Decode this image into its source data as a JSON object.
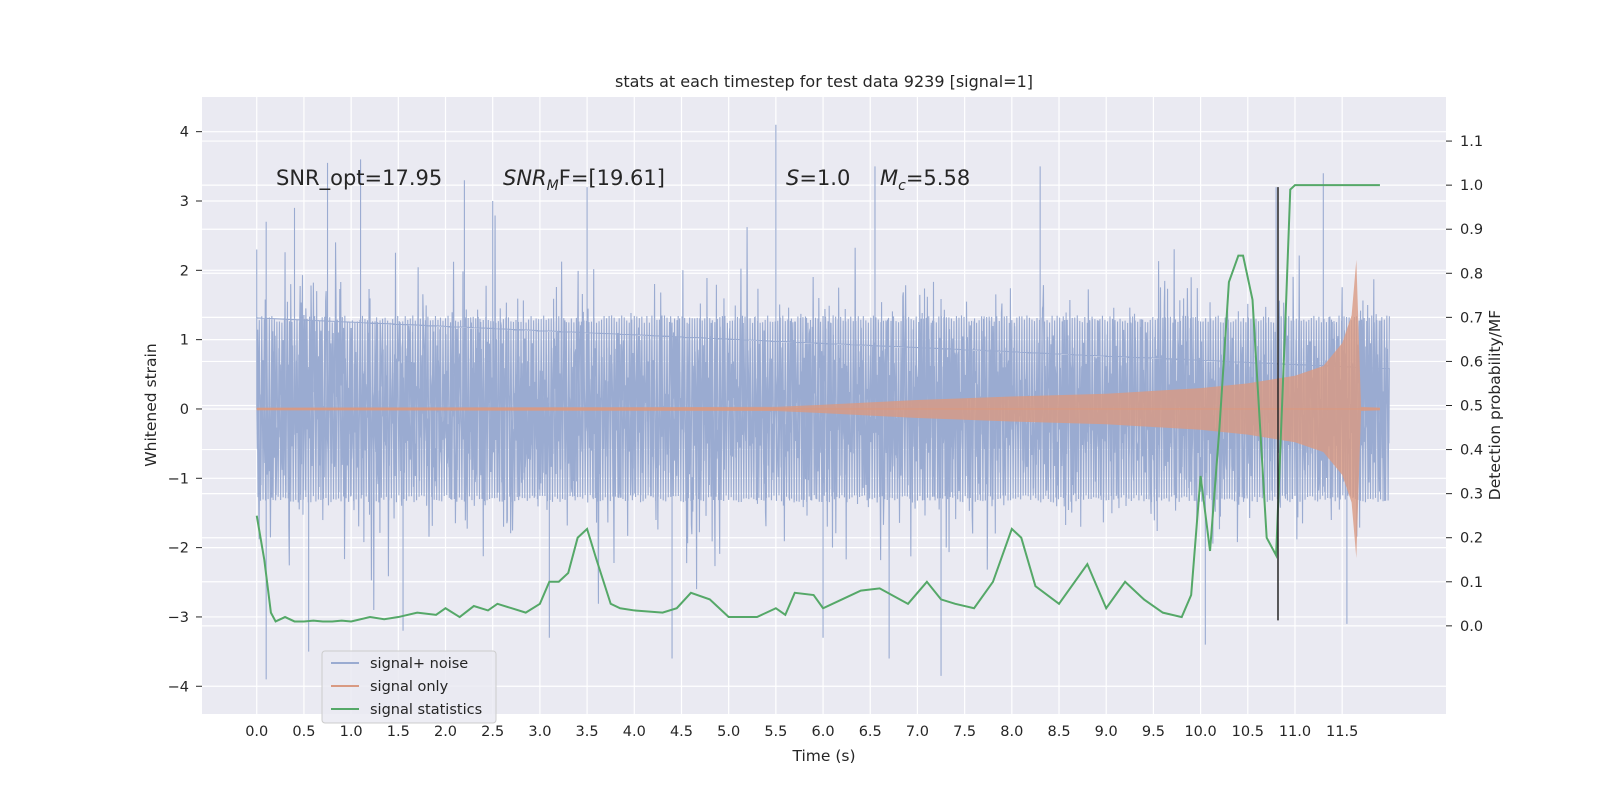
{
  "chart_data": {
    "type": "line",
    "title": "stats at each timestep for test data 9239 [signal=1]",
    "xlabel": "Time (s)",
    "ylabel_left": "Whitened strain",
    "ylabel_right": "Detection probability/MF",
    "xlim": [
      -0.58,
      12.6
    ],
    "ylim_left": [
      -4.4,
      4.5
    ],
    "ylim_right": [
      -0.2,
      1.2
    ],
    "x_ticks": [
      0.0,
      0.5,
      1.0,
      1.5,
      2.0,
      2.5,
      3.0,
      3.5,
      4.0,
      4.5,
      5.0,
      5.5,
      6.0,
      6.5,
      7.0,
      7.5,
      8.0,
      8.5,
      9.0,
      9.5,
      10.0,
      10.5,
      11.0,
      11.5
    ],
    "x_tick_labels": [
      "0.0",
      "0.5",
      "1.0",
      "1.5",
      "2.0",
      "2.5",
      "3.0",
      "3.5",
      "4.0",
      "4.5",
      "5.0",
      "5.5",
      "6.0",
      "6.5",
      "7.0",
      "7.5",
      "8.0",
      "8.5",
      "9.0",
      "9.5",
      "10.0",
      "10.5",
      "11.0",
      "11.5"
    ],
    "y_left_ticks": [
      -4,
      -3,
      -2,
      -1,
      0,
      1,
      2,
      3,
      4
    ],
    "y_left_tick_labels": [
      "−4",
      "−3",
      "−2",
      "−1",
      "0",
      "1",
      "2",
      "3",
      "4"
    ],
    "y_right_ticks": [
      0.0,
      0.1,
      0.2,
      0.3,
      0.4,
      0.5,
      0.6,
      0.7,
      0.8,
      0.9,
      1.0,
      1.1
    ],
    "y_right_tick_labels": [
      "0.0",
      "0.1",
      "0.2",
      "0.3",
      "0.4",
      "0.5",
      "0.6",
      "0.7",
      "0.8",
      "0.9",
      "1.0",
      "1.1"
    ],
    "grid": true,
    "background": "#eaeaf2",
    "annotations": {
      "snr_opt": "SNR_opt=17.95",
      "snr_mf_main": "SNR",
      "snr_mf_sub": "M",
      "snr_mf_rest": "F=[19.61]",
      "s_main": "S",
      "s_rest": "=1.0",
      "mc_main": "M",
      "mc_sub": "c",
      "mc_rest": "=5.58"
    },
    "vertical_marker_x": 10.82,
    "series": [
      {
        "name": "signal+ noise",
        "color": "#9aabd1",
        "axis": "left",
        "kind": "noise",
        "x_range": [
          0.0,
          12.0
        ],
        "core_amplitude": 1.35,
        "peak_values": [
          {
            "x": 0.0,
            "y": 2.3
          },
          {
            "x": 0.1,
            "y": 2.7
          },
          {
            "x": 0.4,
            "y": 2.9
          },
          {
            "x": 0.75,
            "y": 3.55
          },
          {
            "x": 1.1,
            "y": 3.6
          },
          {
            "x": 2.2,
            "y": 3.3
          },
          {
            "x": 2.5,
            "y": 3.0
          },
          {
            "x": 3.5,
            "y": 3.2
          },
          {
            "x": 5.5,
            "y": 4.1
          },
          {
            "x": 6.55,
            "y": 3.5
          },
          {
            "x": 8.3,
            "y": 3.5
          },
          {
            "x": 10.8,
            "y": 3.2
          },
          {
            "x": 11.3,
            "y": 3.4
          }
        ],
        "trough_values": [
          {
            "x": 0.1,
            "y": -3.9
          },
          {
            "x": 0.55,
            "y": -3.5
          },
          {
            "x": 1.55,
            "y": -3.2
          },
          {
            "x": 3.1,
            "y": -3.3
          },
          {
            "x": 4.4,
            "y": -3.6
          },
          {
            "x": 6.0,
            "y": -3.3
          },
          {
            "x": 6.7,
            "y": -3.6
          },
          {
            "x": 7.25,
            "y": -3.85
          },
          {
            "x": 10.05,
            "y": -3.4
          },
          {
            "x": 11.55,
            "y": -3.1
          }
        ]
      },
      {
        "name": "signal only",
        "color": "#d99a82",
        "axis": "left",
        "kind": "chirp",
        "x": [
          0.0,
          5.5,
          6.0,
          7.0,
          8.0,
          9.0,
          10.0,
          10.5,
          11.0,
          11.3,
          11.5,
          11.6,
          11.65,
          11.7,
          11.9
        ],
        "envelope": [
          0.02,
          0.03,
          0.06,
          0.13,
          0.18,
          0.22,
          0.3,
          0.37,
          0.48,
          0.62,
          0.95,
          1.35,
          2.15,
          0.03,
          0.02
        ]
      },
      {
        "name": "signal statistics",
        "color": "#55a868",
        "axis": "right",
        "kind": "line",
        "x": [
          0.0,
          0.08,
          0.15,
          0.2,
          0.3,
          0.4,
          0.5,
          0.6,
          0.7,
          0.8,
          0.9,
          1.0,
          1.2,
          1.35,
          1.5,
          1.7,
          1.9,
          2.0,
          2.15,
          2.3,
          2.45,
          2.55,
          2.7,
          2.85,
          3.0,
          3.1,
          3.2,
          3.3,
          3.4,
          3.5,
          3.6,
          3.75,
          3.85,
          4.0,
          4.3,
          4.45,
          4.6,
          4.8,
          5.0,
          5.3,
          5.5,
          5.6,
          5.7,
          5.9,
          6.0,
          6.2,
          6.4,
          6.6,
          6.9,
          7.1,
          7.25,
          7.4,
          7.6,
          7.8,
          8.0,
          8.1,
          8.25,
          8.5,
          8.8,
          9.0,
          9.2,
          9.4,
          9.6,
          9.8,
          9.9,
          10.0,
          10.1,
          10.2,
          10.3,
          10.4,
          10.45,
          10.55,
          10.7,
          10.8,
          10.9,
          10.95,
          11.0,
          11.2,
          11.5,
          11.9
        ],
        "y": [
          0.25,
          0.15,
          0.03,
          0.01,
          0.02,
          0.01,
          0.01,
          0.012,
          0.01,
          0.01,
          0.012,
          0.01,
          0.02,
          0.015,
          0.02,
          0.03,
          0.025,
          0.04,
          0.02,
          0.045,
          0.035,
          0.05,
          0.04,
          0.03,
          0.05,
          0.1,
          0.1,
          0.12,
          0.2,
          0.22,
          0.15,
          0.05,
          0.04,
          0.035,
          0.03,
          0.04,
          0.075,
          0.06,
          0.02,
          0.02,
          0.04,
          0.025,
          0.075,
          0.07,
          0.04,
          0.06,
          0.08,
          0.085,
          0.05,
          0.1,
          0.06,
          0.05,
          0.04,
          0.1,
          0.22,
          0.2,
          0.09,
          0.05,
          0.14,
          0.04,
          0.1,
          0.06,
          0.03,
          0.02,
          0.07,
          0.34,
          0.17,
          0.45,
          0.78,
          0.84,
          0.84,
          0.74,
          0.2,
          0.16,
          0.7,
          0.99,
          1.0,
          1.0,
          1.0,
          1.0
        ]
      }
    ],
    "legend": {
      "position": "lower-left",
      "entries": [
        "signal+ noise",
        "signal only",
        "signal statistics"
      ]
    }
  }
}
